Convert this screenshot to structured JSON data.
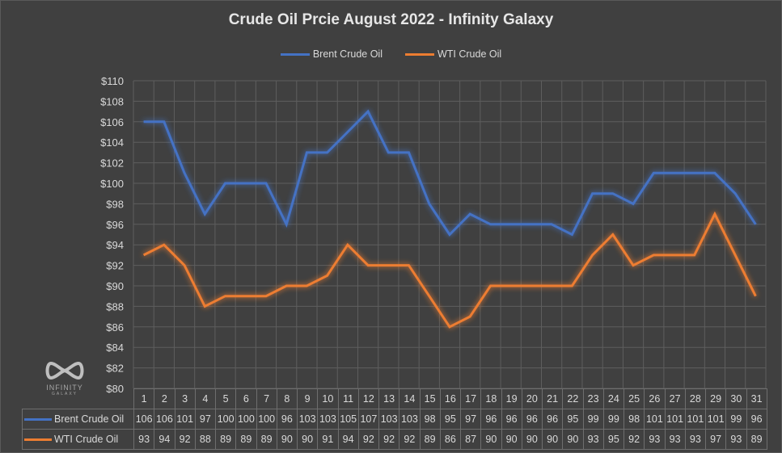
{
  "chart_data": {
    "type": "line",
    "title": "Crude Oil Prcie August 2022 - Infinity Galaxy",
    "xlabel": "",
    "ylabel": "",
    "categories": [
      "1",
      "2",
      "3",
      "4",
      "5",
      "6",
      "7",
      "8",
      "9",
      "10",
      "11",
      "12",
      "13",
      "14",
      "15",
      "16",
      "17",
      "18",
      "19",
      "20",
      "21",
      "22",
      "23",
      "24",
      "25",
      "26",
      "27",
      "28",
      "29",
      "30",
      "31"
    ],
    "series": [
      {
        "name": "Brent Crude Oil",
        "color": "#4472c4",
        "values": [
          106,
          106,
          101,
          97,
          100,
          100,
          100,
          96,
          103,
          103,
          105,
          107,
          103,
          103,
          98,
          95,
          97,
          96,
          96,
          96,
          96,
          95,
          99,
          99,
          98,
          101,
          101,
          101,
          101,
          99,
          96
        ]
      },
      {
        "name": "WTI Crude Oil",
        "color": "#ed7d31",
        "values": [
          93,
          94,
          92,
          88,
          89,
          89,
          89,
          90,
          90,
          91,
          94,
          92,
          92,
          92,
          89,
          86,
          87,
          90,
          90,
          90,
          90,
          90,
          93,
          95,
          92,
          93,
          93,
          93,
          97,
          93,
          89
        ]
      }
    ],
    "ylim": [
      80,
      110
    ],
    "yticks": [
      "$80",
      "$82",
      "$84",
      "$86",
      "$88",
      "$90",
      "$92",
      "$94",
      "$96",
      "$98",
      "$100",
      "$102",
      "$104",
      "$106",
      "$108",
      "$110"
    ],
    "grid": true,
    "legend_position": "top",
    "data_table": true
  },
  "legend": {
    "brent_label": "Brent Crude Oil",
    "wti_label": "WTI Crude Oil"
  },
  "logo": {
    "text": "INFINITY",
    "subtext": "GALAXY"
  }
}
